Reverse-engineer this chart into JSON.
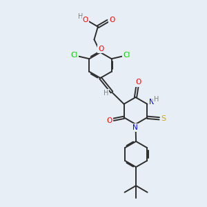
{
  "background_color": "#e8eef5",
  "bond_color": "#2d2d2d",
  "atom_colors": {
    "O": "#ff0000",
    "N": "#0000ee",
    "S": "#ccaa00",
    "Cl": "#00cc00",
    "H": "#808080",
    "C": "#2d2d2d"
  },
  "figsize": [
    3.0,
    3.0
  ],
  "dpi": 100
}
